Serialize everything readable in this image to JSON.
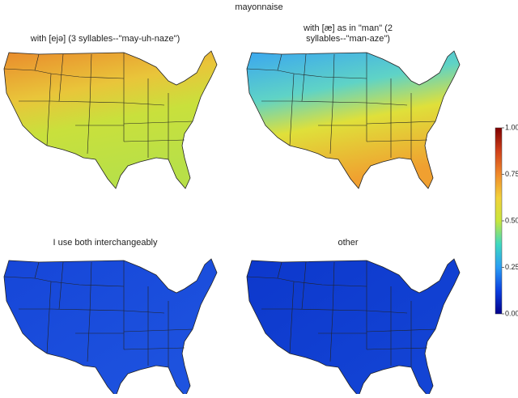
{
  "title": "mayonnaise",
  "panels": [
    {
      "title_lines": [
        "with [ejə] (3 syllables--\"may-uh-naze\")"
      ]
    },
    {
      "title_lines": [
        "with [æ] as in \"man\" (2",
        "syllables--\"man-aze\")"
      ]
    },
    {
      "title_lines": [
        "I use both interchangeably"
      ]
    },
    {
      "title_lines": [
        "other"
      ]
    }
  ],
  "colorbar": {
    "lim": [
      0,
      1
    ],
    "ticks": [
      {
        "value": 0,
        "label": "0.00"
      },
      {
        "value": 0.25,
        "label": "0.25"
      },
      {
        "value": 0.5,
        "label": "0.50"
      },
      {
        "value": 0.75,
        "label": "0.75"
      },
      {
        "value": 1,
        "label": "1.00"
      }
    ],
    "colors": [
      "#00008b",
      "#0b3fe0",
      "#2a9df4",
      "#3fd9c0",
      "#c8e63c",
      "#f2d13a",
      "#f08a2a",
      "#d0401a",
      "#7f0000"
    ]
  }
}
